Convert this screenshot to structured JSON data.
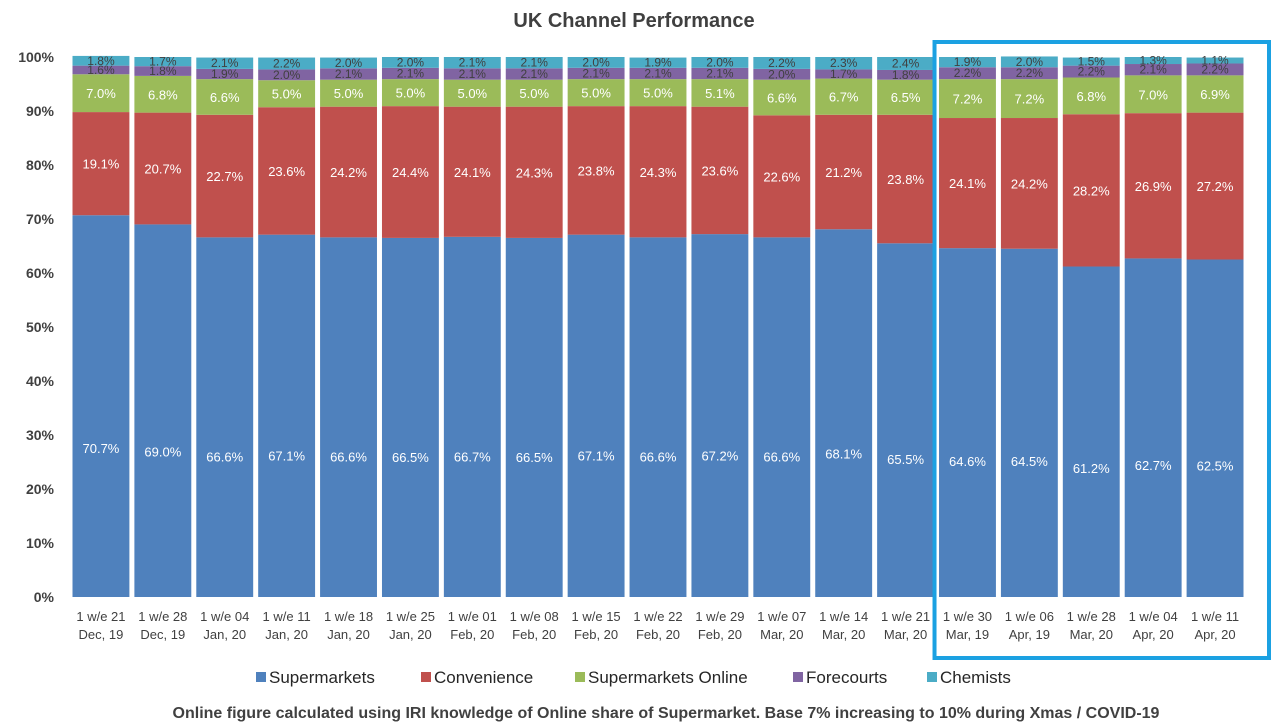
{
  "chart_data": {
    "type": "bar",
    "stacked": true,
    "title": "UK Channel Performance",
    "ylim": [
      0,
      100
    ],
    "yticks": [
      "0%",
      "10%",
      "20%",
      "30%",
      "40%",
      "50%",
      "60%",
      "70%",
      "80%",
      "90%",
      "100%"
    ],
    "categories": [
      [
        "1 w/e 21",
        "Dec, 19"
      ],
      [
        "1 w/e 28",
        "Dec, 19"
      ],
      [
        "1 w/e 04",
        "Jan, 20"
      ],
      [
        "1 w/e 11",
        "Jan, 20"
      ],
      [
        "1 w/e 18",
        "Jan, 20"
      ],
      [
        "1 w/e 25",
        "Jan, 20"
      ],
      [
        "1 w/e 01",
        "Feb, 20"
      ],
      [
        "1 w/e 08",
        "Feb, 20"
      ],
      [
        "1 w/e 15",
        "Feb, 20"
      ],
      [
        "1 w/e 22",
        "Feb, 20"
      ],
      [
        "1 w/e 29",
        "Feb, 20"
      ],
      [
        "1 w/e 07",
        "Mar, 20"
      ],
      [
        "1 w/e 14",
        "Mar, 20"
      ],
      [
        "1 w/e 21",
        "Mar, 20"
      ],
      [
        "1 w/e 30",
        "Mar, 19"
      ],
      [
        "1 w/e 06",
        "Apr, 19"
      ],
      [
        "1 w/e 28",
        "Mar, 20"
      ],
      [
        "1 w/e 04",
        "Apr, 20"
      ],
      [
        "1 w/e 11",
        "Apr, 20"
      ]
    ],
    "series": [
      {
        "name": "Supermarkets",
        "color": "#4F81BD",
        "values": [
          70.7,
          69.0,
          66.6,
          67.1,
          66.6,
          66.5,
          66.7,
          66.5,
          67.1,
          66.6,
          67.2,
          66.6,
          68.1,
          65.5,
          64.6,
          64.5,
          61.2,
          62.7,
          62.5
        ]
      },
      {
        "name": "Convenience",
        "color": "#C0504D",
        "values": [
          19.1,
          20.7,
          22.7,
          23.6,
          24.2,
          24.4,
          24.1,
          24.3,
          23.8,
          24.3,
          23.6,
          22.6,
          21.2,
          23.8,
          24.1,
          24.2,
          28.2,
          26.9,
          27.2
        ]
      },
      {
        "name": "Supermarkets Online",
        "color": "#9BBB59",
        "values": [
          7.0,
          6.8,
          6.6,
          5.0,
          5.0,
          5.0,
          5.0,
          5.0,
          5.0,
          5.0,
          5.1,
          6.6,
          6.7,
          6.5,
          7.2,
          7.2,
          6.8,
          7.0,
          6.9
        ]
      },
      {
        "name": "Forecourts",
        "color": "#8064A2",
        "values": [
          1.6,
          1.8,
          1.9,
          2.0,
          2.1,
          2.1,
          2.1,
          2.1,
          2.1,
          2.1,
          2.1,
          2.0,
          1.7,
          1.8,
          2.2,
          2.2,
          2.2,
          2.1,
          2.2
        ]
      },
      {
        "name": "Chemists",
        "color": "#4BACC6",
        "values": [
          1.8,
          1.7,
          2.1,
          2.2,
          2.0,
          2.0,
          2.1,
          2.1,
          2.0,
          1.9,
          2.0,
          2.2,
          2.3,
          2.4,
          1.9,
          2.0,
          1.5,
          1.3,
          1.1
        ]
      }
    ],
    "value_suffix": "%",
    "legend_position": "bottom",
    "highlight_box": {
      "from_index": 14,
      "to_index": 18,
      "color": "#1BA1E2"
    },
    "footnote": "Online figure calculated using IRI knowledge of Online share of Supermarket. Base 7% increasing to 10% during Xmas / COVID-19"
  }
}
